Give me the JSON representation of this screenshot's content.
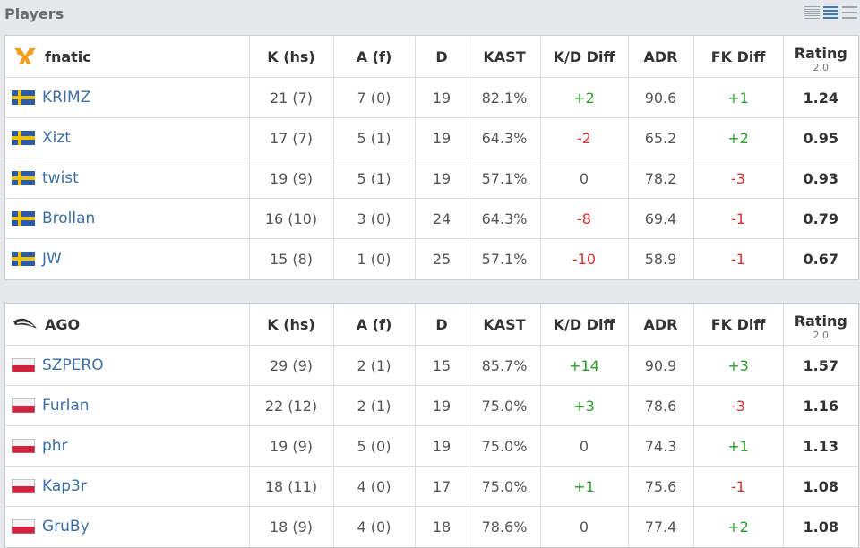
{
  "section_title": "Players",
  "columns": [
    "K (hs)",
    "A (f)",
    "D",
    "KAST",
    "K/D Diff",
    "ADR",
    "FK Diff",
    "Rating"
  ],
  "rating_sub": "2.0",
  "teams": [
    {
      "name": "fnatic",
      "logo_icon": "fnatic-logo-icon",
      "players": [
        {
          "name": "KRIMZ",
          "flag": "sweden-flag-icon",
          "k": "21 (7)",
          "a": "7 (0)",
          "d": "19",
          "kast": "82.1%",
          "kd": "+2",
          "kd_sign": "pos",
          "adr": "90.6",
          "fk": "+1",
          "fk_sign": "pos",
          "rating": "1.24"
        },
        {
          "name": "Xizt",
          "flag": "sweden-flag-icon",
          "k": "17 (7)",
          "a": "5 (1)",
          "d": "19",
          "kast": "64.3%",
          "kd": "-2",
          "kd_sign": "neg",
          "adr": "65.2",
          "fk": "+2",
          "fk_sign": "pos",
          "rating": "0.95"
        },
        {
          "name": "twist",
          "flag": "sweden-flag-icon",
          "k": "19 (9)",
          "a": "5 (1)",
          "d": "19",
          "kast": "57.1%",
          "kd": "0",
          "kd_sign": "zero",
          "adr": "78.2",
          "fk": "-3",
          "fk_sign": "neg",
          "rating": "0.93"
        },
        {
          "name": "Brollan",
          "flag": "sweden-flag-icon",
          "k": "16 (10)",
          "a": "3 (0)",
          "d": "24",
          "kast": "64.3%",
          "kd": "-8",
          "kd_sign": "neg",
          "adr": "69.4",
          "fk": "-1",
          "fk_sign": "neg",
          "rating": "0.79"
        },
        {
          "name": "JW",
          "flag": "sweden-flag-icon",
          "k": "15 (8)",
          "a": "1 (0)",
          "d": "25",
          "kast": "57.1%",
          "kd": "-10",
          "kd_sign": "neg",
          "adr": "58.9",
          "fk": "-1",
          "fk_sign": "neg",
          "rating": "0.67"
        }
      ]
    },
    {
      "name": "AGO",
      "logo_icon": "ago-logo-icon",
      "players": [
        {
          "name": "SZPERO",
          "flag": "poland-flag-icon",
          "k": "29 (9)",
          "a": "2 (1)",
          "d": "15",
          "kast": "85.7%",
          "kd": "+14",
          "kd_sign": "pos",
          "adr": "90.9",
          "fk": "+3",
          "fk_sign": "pos",
          "rating": "1.57"
        },
        {
          "name": "Furlan",
          "flag": "poland-flag-icon",
          "k": "22 (12)",
          "a": "2 (1)",
          "d": "19",
          "kast": "75.0%",
          "kd": "+3",
          "kd_sign": "pos",
          "adr": "78.6",
          "fk": "-3",
          "fk_sign": "neg",
          "rating": "1.16"
        },
        {
          "name": "phr",
          "flag": "poland-flag-icon",
          "k": "19 (9)",
          "a": "5 (0)",
          "d": "19",
          "kast": "75.0%",
          "kd": "0",
          "kd_sign": "zero",
          "adr": "74.3",
          "fk": "+1",
          "fk_sign": "pos",
          "rating": "1.13"
        },
        {
          "name": "Kap3r",
          "flag": "poland-flag-icon",
          "k": "18 (11)",
          "a": "4 (0)",
          "d": "17",
          "kast": "75.0%",
          "kd": "+1",
          "kd_sign": "pos",
          "adr": "75.6",
          "fk": "-1",
          "fk_sign": "neg",
          "rating": "1.08"
        },
        {
          "name": "GruBy",
          "flag": "poland-flag-icon",
          "k": "18 (9)",
          "a": "4 (0)",
          "d": "18",
          "kast": "78.6%",
          "kd": "0",
          "kd_sign": "zero",
          "adr": "77.4",
          "fk": "+2",
          "fk_sign": "pos",
          "rating": "1.08"
        }
      ]
    }
  ],
  "colors": {
    "positive": "#2a9d2a",
    "negative": "#d43131",
    "link": "#3e6fa5",
    "toggle_active": "#3e79b8"
  }
}
